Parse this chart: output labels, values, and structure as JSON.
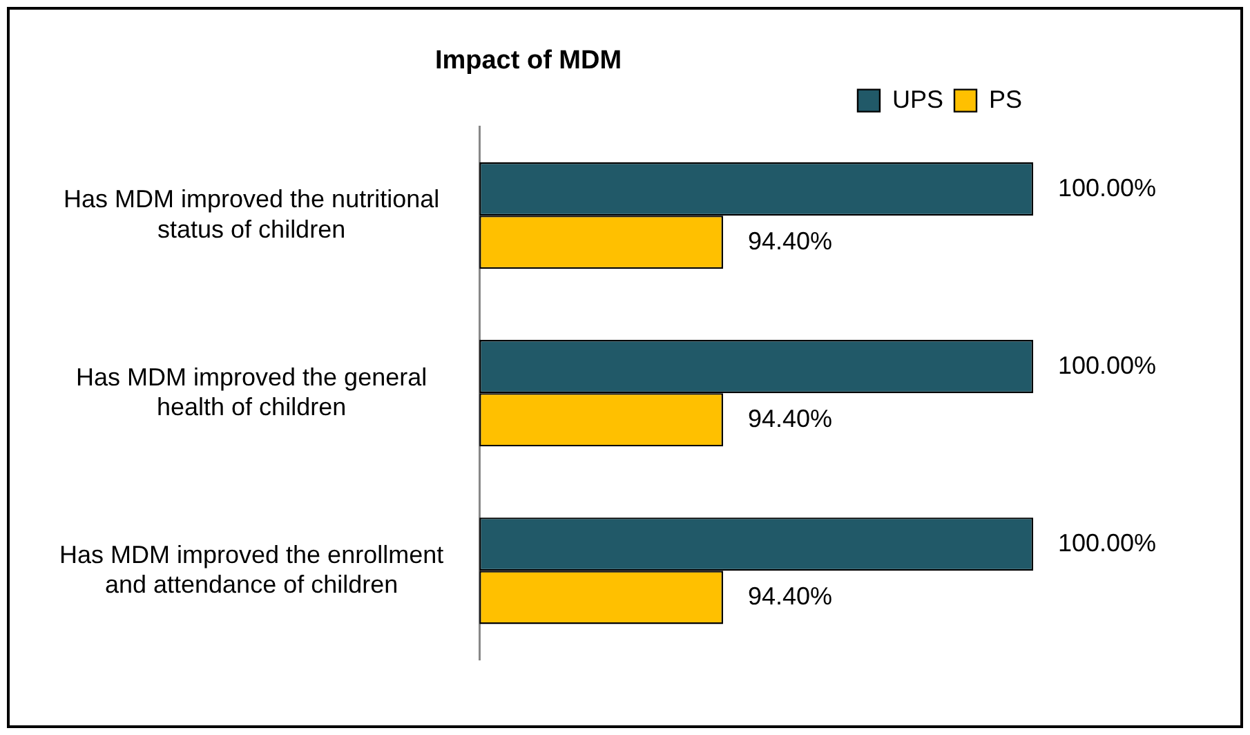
{
  "chart_data": {
    "type": "bar",
    "orientation": "horizontal",
    "title": "Impact of MDM",
    "categories": [
      "Has MDM improved the nutritional status of children",
      "Has MDM improved the general health of children",
      "Has MDM improved the enrollment and attendance of children"
    ],
    "series": [
      {
        "name": "UPS",
        "color": "#215968",
        "values": [
          100,
          100,
          100
        ],
        "value_labels": [
          "100.00%",
          "100.00%",
          "100.00%"
        ]
      },
      {
        "name": "PS",
        "color": "#ffc000",
        "values": [
          94.4,
          94.4,
          94.4
        ],
        "value_labels": [
          "94.40%",
          "94.40%",
          "94.40%"
        ]
      }
    ],
    "xlim": [
      90,
      100
    ],
    "tick_labels": "y",
    "legend": "top right"
  }
}
